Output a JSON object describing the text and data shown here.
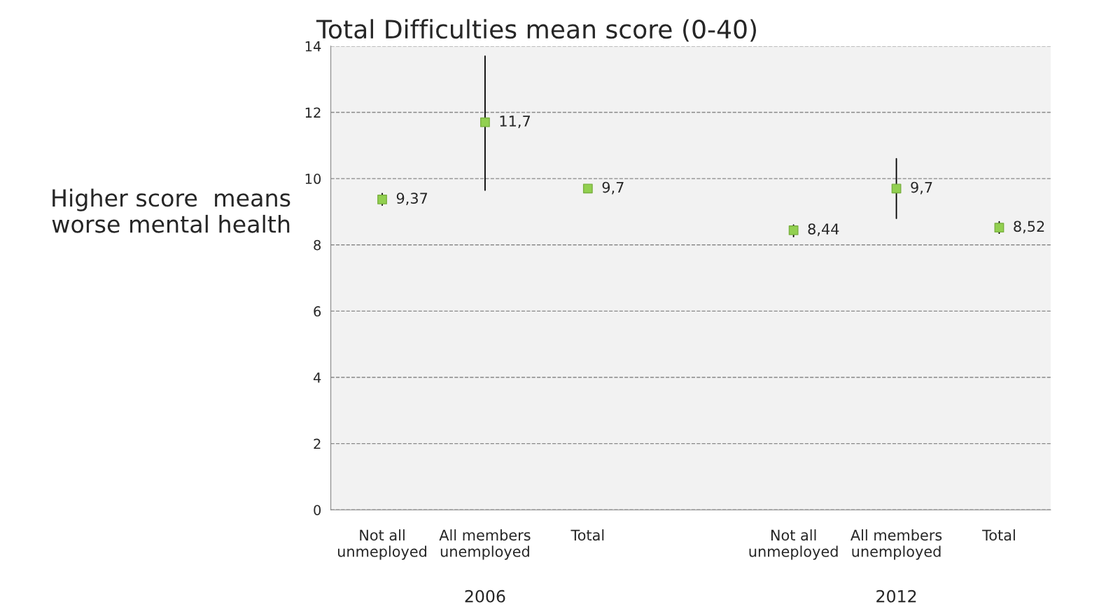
{
  "chart_data": {
    "type": "scatter",
    "title": "Total Difficulties mean score (0-40)",
    "ylabel": "Higher score  means\nworse mental health",
    "categories": [
      "Not all\nunmeployed",
      "All members\nunemployed",
      "Total",
      null,
      "Not all\nunmeployed",
      "All members\nunemployed",
      "Total"
    ],
    "series": [
      {
        "color": "#92d050",
        "values": [
          9.37,
          11.7,
          9.7,
          null,
          8.44,
          9.7,
          8.52
        ],
        "errors": [
          [
            9.2,
            9.55
          ],
          [
            9.65,
            13.7
          ],
          null,
          null,
          [
            8.25,
            8.6
          ],
          [
            8.8,
            10.6
          ],
          [
            8.35,
            8.7
          ]
        ],
        "value_labels": [
          "9,37",
          "11,7",
          "9,7",
          null,
          "8,44",
          "9,7",
          "8,52"
        ]
      }
    ],
    "annotations": [
      "2006",
      "2012"
    ],
    "ylim": [
      0,
      14
    ],
    "yticks": [
      0,
      2,
      4,
      6,
      8,
      10,
      12,
      14
    ],
    "grid": "y",
    "marker": "square"
  }
}
